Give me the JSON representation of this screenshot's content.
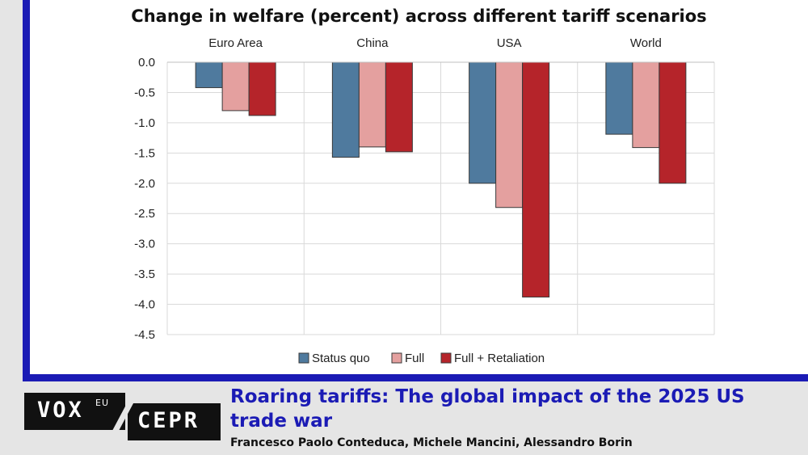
{
  "article": {
    "title": "Roaring tariffs: The global impact of the 2025 US trade war",
    "authors": "Francesco Paolo Conteduca, Michele Mancini, Alessandro Borin"
  },
  "branding": {
    "vox": "VOX",
    "eu": "EU",
    "cepr": "CEPR",
    "frame_color": "#1b1bb5"
  },
  "chart_data": {
    "type": "bar",
    "title": "Change in welfare (percent) across different tariff scenarios",
    "categories": [
      "Euro Area",
      "China",
      "USA",
      "World"
    ],
    "series": [
      {
        "name": "Status quo",
        "color": "#4f7a9e",
        "values": [
          -0.42,
          -1.57,
          -2.0,
          -1.19
        ]
      },
      {
        "name": "Full",
        "color": "#e4a09f",
        "values": [
          -0.8,
          -1.4,
          -2.4,
          -1.41
        ]
      },
      {
        "name": "Full + Retaliation",
        "color": "#b5242a",
        "values": [
          -0.88,
          -1.48,
          -3.88,
          -2.0
        ]
      }
    ],
    "yticks": [
      "0.0",
      "-0.5",
      "-1.0",
      "-1.5",
      "-2.0",
      "-2.5",
      "-3.0",
      "-3.5",
      "-4.0",
      "-4.5"
    ],
    "ylim": [
      -4.5,
      0
    ],
    "xlabel": "",
    "ylabel": "",
    "grid": true,
    "legend": "bottom"
  }
}
